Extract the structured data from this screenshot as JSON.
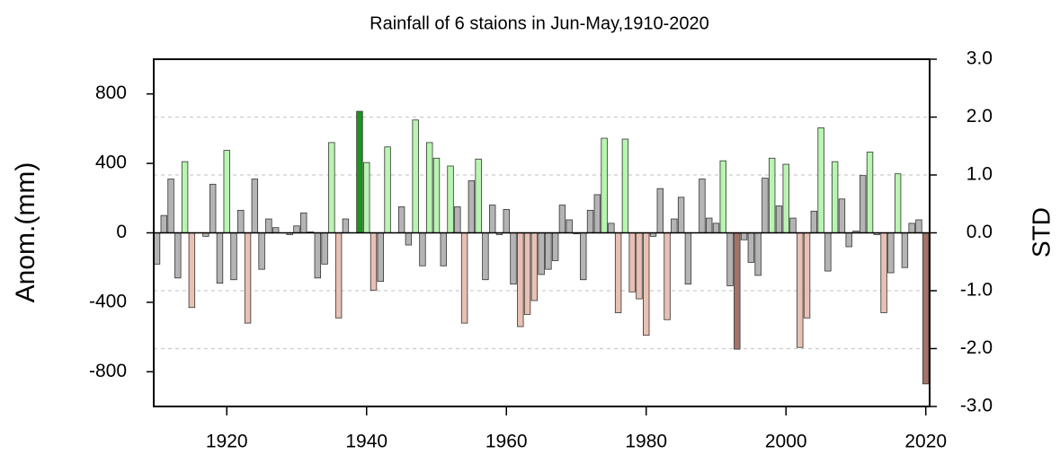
{
  "chart_data": {
    "type": "bar",
    "title": "Rainfall of 6 staions in Jun-May,1910-2020",
    "ylabel": "Anom.(mm)",
    "y2label": "STD",
    "x": [
      1910,
      1911,
      1912,
      1913,
      1914,
      1915,
      1916,
      1917,
      1918,
      1919,
      1920,
      1921,
      1922,
      1923,
      1924,
      1925,
      1926,
      1927,
      1928,
      1929,
      1930,
      1931,
      1932,
      1933,
      1934,
      1935,
      1936,
      1937,
      1938,
      1939,
      1940,
      1941,
      1942,
      1943,
      1944,
      1945,
      1946,
      1947,
      1948,
      1949,
      1950,
      1951,
      1952,
      1953,
      1954,
      1955,
      1956,
      1957,
      1958,
      1959,
      1960,
      1961,
      1962,
      1963,
      1964,
      1965,
      1966,
      1967,
      1968,
      1969,
      1970,
      1971,
      1972,
      1973,
      1974,
      1975,
      1976,
      1977,
      1978,
      1979,
      1980,
      1981,
      1982,
      1983,
      1984,
      1985,
      1986,
      1987,
      1988,
      1989,
      1990,
      1991,
      1992,
      1993,
      1994,
      1995,
      1996,
      1997,
      1998,
      1999,
      2000,
      2001,
      2002,
      2003,
      2004,
      2005,
      2006,
      2007,
      2008,
      2009,
      2010,
      2011,
      2012,
      2013,
      2014,
      2015,
      2016,
      2017,
      2018,
      2019,
      2020
    ],
    "series": [
      {
        "values": [
          -180,
          100,
          310,
          -260,
          410,
          -430,
          0,
          -20,
          280,
          -290,
          475,
          -270,
          130,
          -520,
          310,
          -210,
          80,
          30,
          0,
          -10,
          40,
          115,
          5,
          -260,
          -180,
          520,
          -490,
          80,
          0,
          700,
          405,
          -330,
          -280,
          495,
          0,
          150,
          -70,
          650,
          -190,
          520,
          430,
          -190,
          385,
          150,
          -520,
          300,
          425,
          -270,
          160,
          -10,
          135,
          -295,
          -540,
          -470,
          -390,
          -240,
          -210,
          -160,
          160,
          75,
          -5,
          -270,
          130,
          220,
          545,
          55,
          -460,
          540,
          -340,
          -380,
          -590,
          -20,
          255,
          -500,
          80,
          205,
          -295,
          0,
          310,
          85,
          55,
          415,
          -305,
          -670,
          -40,
          -170,
          -245,
          315,
          430,
          155,
          395,
          85,
          -660,
          -490,
          125,
          605,
          -220,
          410,
          195,
          -80,
          10,
          330,
          465,
          -10,
          -460,
          -230,
          340,
          -200,
          55,
          75,
          -870
        ],
        "colors": [
          "#b4b4b4",
          "#b4b4b4",
          "#b4b4b4",
          "#b4b4b4",
          "#b8f5b0",
          "#e8c0b4",
          "#b4b4b4",
          "#b4b4b4",
          "#b4b4b4",
          "#b4b4b4",
          "#b8f5b0",
          "#b4b4b4",
          "#b4b4b4",
          "#e8c0b4",
          "#b4b4b4",
          "#b4b4b4",
          "#b4b4b4",
          "#b4b4b4",
          "#b4b4b4",
          "#b4b4b4",
          "#b4b4b4",
          "#b4b4b4",
          "#b4b4b4",
          "#b4b4b4",
          "#b4b4b4",
          "#b8f5b0",
          "#e8c0b4",
          "#b4b4b4",
          "#b4b4b4",
          "#1a961a",
          "#b8f5b0",
          "#e8c0b4",
          "#b4b4b4",
          "#b8f5b0",
          "#b4b4b4",
          "#b4b4b4",
          "#b4b4b4",
          "#b8f5b0",
          "#b4b4b4",
          "#b8f5b0",
          "#b8f5b0",
          "#b4b4b4",
          "#b8f5b0",
          "#b4b4b4",
          "#e8c0b4",
          "#b4b4b4",
          "#b8f5b0",
          "#b4b4b4",
          "#b4b4b4",
          "#b4b4b4",
          "#b4b4b4",
          "#b4b4b4",
          "#e8c0b4",
          "#e8c0b4",
          "#e8c0b4",
          "#b4b4b4",
          "#b4b4b4",
          "#b4b4b4",
          "#b4b4b4",
          "#b4b4b4",
          "#b4b4b4",
          "#b4b4b4",
          "#b4b4b4",
          "#b4b4b4",
          "#b8f5b0",
          "#b4b4b4",
          "#e8c0b4",
          "#b8f5b0",
          "#e8c0b4",
          "#e8c0b4",
          "#e8c0b4",
          "#b4b4b4",
          "#b4b4b4",
          "#e8c0b4",
          "#b4b4b4",
          "#b4b4b4",
          "#b4b4b4",
          "#b4b4b4",
          "#b4b4b4",
          "#b4b4b4",
          "#b4b4b4",
          "#b8f5b0",
          "#b4b4b4",
          "#a57268",
          "#b4b4b4",
          "#b4b4b4",
          "#b4b4b4",
          "#b4b4b4",
          "#b8f5b0",
          "#b4b4b4",
          "#b8f5b0",
          "#b4b4b4",
          "#e8c0b4",
          "#e8c0b4",
          "#b4b4b4",
          "#b8f5b0",
          "#b4b4b4",
          "#b8f5b0",
          "#b4b4b4",
          "#b4b4b4",
          "#b4b4b4",
          "#b4b4b4",
          "#b8f5b0",
          "#b4b4b4",
          "#e8c0b4",
          "#b4b4b4",
          "#b8f5b0",
          "#b4b4b4",
          "#b4b4b4",
          "#b4b4b4",
          "#a57268"
        ]
      }
    ],
    "xlim": [
      1910,
      2021
    ],
    "xticks": [
      1920,
      1940,
      1960,
      1980,
      2000,
      2020
    ],
    "ylim": [
      -1000,
      1000
    ],
    "yticks": [
      -800,
      -400,
      0,
      400,
      800
    ],
    "y2lim": [
      -3,
      3
    ],
    "y2ticks": [
      {
        "value": 3,
        "label": "3.0"
      },
      {
        "value": 2,
        "label": "2.0"
      },
      {
        "value": 1,
        "label": "1.0"
      },
      {
        "value": 0,
        "label": "0.0"
      },
      {
        "value": -1,
        "label": "-1.0"
      },
      {
        "value": -2,
        "label": "-2.0"
      },
      {
        "value": -3,
        "label": "-3.0"
      }
    ],
    "grid_dashed_y2": [
      2,
      1,
      -1,
      -2
    ]
  }
}
